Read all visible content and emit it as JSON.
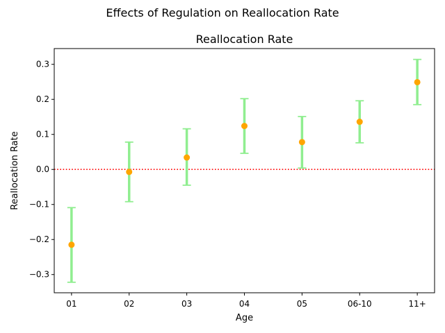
{
  "figure": {
    "suptitle": "Effects of Regulation on Reallocation Rate"
  },
  "chart_data": {
    "type": "scatter",
    "title": "Reallocation Rate",
    "xlabel": "Age",
    "ylabel": "Reallocation Rate",
    "categories": [
      "01",
      "02",
      "03",
      "04",
      "05",
      "06-10",
      "11+"
    ],
    "series": [
      {
        "values": [
          -0.215,
          -0.007,
          0.034,
          0.124,
          0.078,
          0.136,
          0.249
        ],
        "ci_lower": [
          -0.322,
          -0.092,
          -0.045,
          0.046,
          0.004,
          0.076,
          0.185
        ],
        "ci_upper": [
          -0.109,
          0.078,
          0.116,
          0.202,
          0.151,
          0.196,
          0.314
        ],
        "marker_color": "#FFA500",
        "errorbar_color": "#90EE90"
      }
    ],
    "reference_line": {
      "y": 0.0,
      "color": "#FF0000",
      "style": "dotted"
    },
    "ylim": [
      -0.352,
      0.345
    ],
    "yticks": [
      -0.3,
      -0.2,
      -0.1,
      0.0,
      0.1,
      0.2,
      0.3
    ],
    "ytick_labels": [
      "−0.3",
      "−0.2",
      "−0.1",
      "0.0",
      "0.1",
      "0.2",
      "0.3"
    ],
    "grid": false,
    "legend": "none"
  }
}
